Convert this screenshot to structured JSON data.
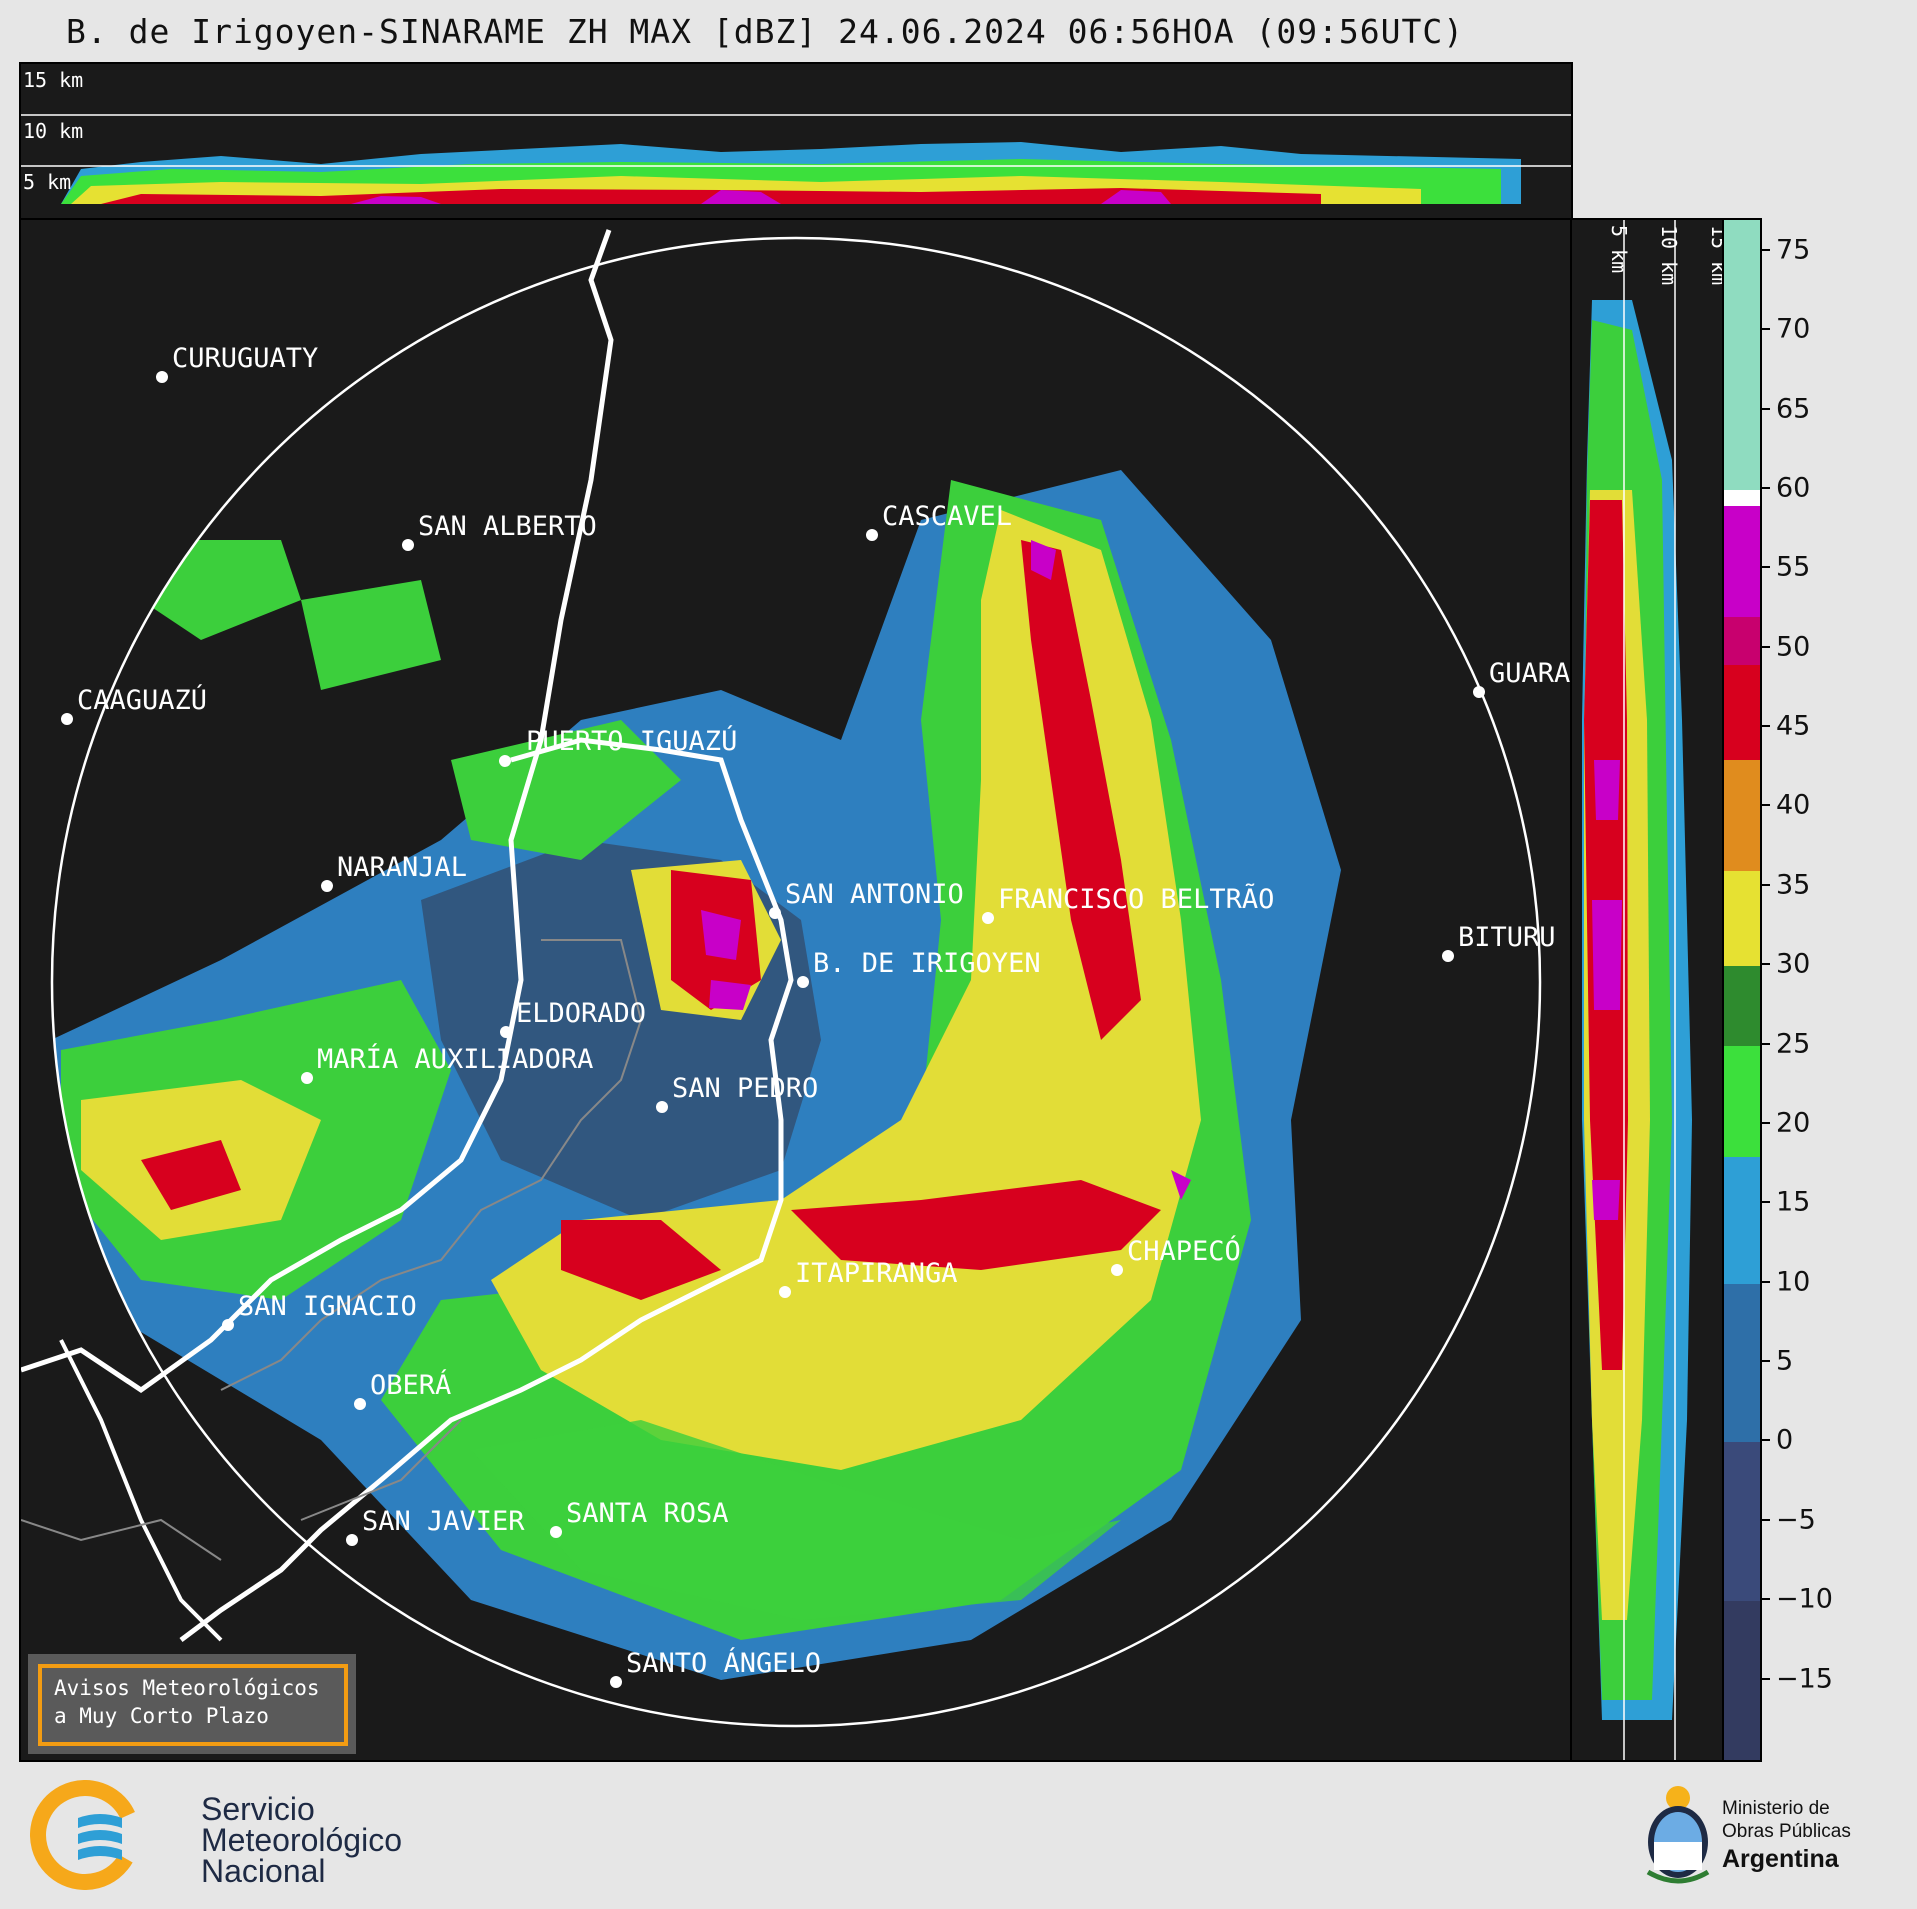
{
  "title": "B. de Irigoyen-SINARAME ZH MAX [dBZ] 24.06.2024 06:56HOA (09:56UTC)",
  "top_profile_labels": [
    "15 km",
    "10 km",
    "5 km"
  ],
  "side_profile_labels": [
    "5 km",
    "10 km",
    "15 km"
  ],
  "cities": [
    {
      "name": "CURUGUATY"
    },
    {
      "name": "SAN ALBERTO"
    },
    {
      "name": "CASCAVEL"
    },
    {
      "name": "CAAGUAZÚ"
    },
    {
      "name": "GUARA"
    },
    {
      "name": "PUERTO IGUAZÚ"
    },
    {
      "name": "NARANJAL"
    },
    {
      "name": "SAN ANTONIO"
    },
    {
      "name": "FRANCISCO BELTRÃO"
    },
    {
      "name": "BITURU"
    },
    {
      "name": "B. DE IRIGOYEN"
    },
    {
      "name": "ELDORADO"
    },
    {
      "name": "MARÍA AUXILIADORA"
    },
    {
      "name": "SAN PEDRO"
    },
    {
      "name": "ITAPIRANGA"
    },
    {
      "name": "CHAPECÓ"
    },
    {
      "name": "SAN IGNACIO"
    },
    {
      "name": "OBERÁ"
    },
    {
      "name": "SAN JAVIER"
    },
    {
      "name": "SANTA ROSA"
    },
    {
      "name": "SANTO ÁNGELO"
    }
  ],
  "colorbar": {
    "unit": "dBZ",
    "ticks": [
      "75",
      "70",
      "65",
      "60",
      "55",
      "50",
      "45",
      "40",
      "35",
      "30",
      "25",
      "20",
      "15",
      "10",
      "5",
      "0",
      "−5",
      "−10",
      "−15"
    ],
    "range": [
      -20,
      77
    ],
    "segments": [
      {
        "from": 60,
        "to": 77,
        "color": "#8fdcc0"
      },
      {
        "from": 59,
        "to": 60,
        "color": "#ffffff"
      },
      {
        "from": 52,
        "to": 59,
        "color": "#c800c8"
      },
      {
        "from": 49,
        "to": 52,
        "color": "#c8006e"
      },
      {
        "from": 43,
        "to": 49,
        "color": "#d7001e"
      },
      {
        "from": 36,
        "to": 43,
        "color": "#e08c1e"
      },
      {
        "from": 30,
        "to": 36,
        "color": "#e6e132"
      },
      {
        "from": 25,
        "to": 30,
        "color": "#2e8b2e"
      },
      {
        "from": 18,
        "to": 25,
        "color": "#3ce03c"
      },
      {
        "from": 10,
        "to": 18,
        "color": "#2e9fd6"
      },
      {
        "from": 0,
        "to": 10,
        "color": "#2e6fa8"
      },
      {
        "from": -10,
        "to": 0,
        "color": "#3a4a7a"
      },
      {
        "from": -20,
        "to": -10,
        "color": "#333b60"
      }
    ]
  },
  "alert": {
    "line1": "Avisos Meteorológicos",
    "line2": "a Muy Corto Plazo",
    "border_color": "#f39c12"
  },
  "footer": {
    "smn_lines": [
      "Servicio",
      "Meteorológico",
      "Nacional"
    ],
    "ministry_lines": [
      "Ministerio de",
      "Obras Públicas",
      "Argentina"
    ]
  }
}
